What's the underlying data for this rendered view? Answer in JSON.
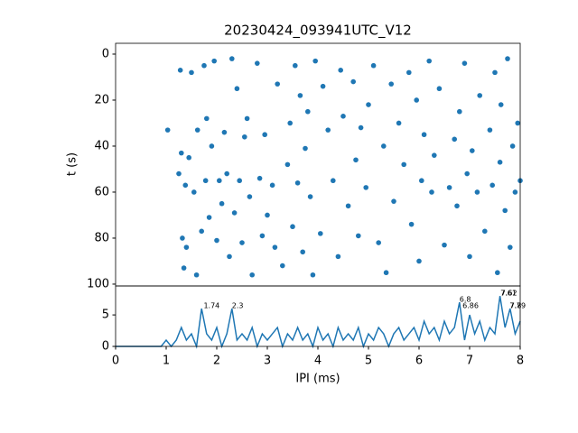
{
  "chart_data": [
    {
      "type": "scatter",
      "title": "20230424_093941UTC_V12",
      "ylabel": "t (s)",
      "color": "#1f77b4",
      "xlim": [
        0,
        8
      ],
      "ylim": [
        -4.7,
        100.8
      ],
      "y_inverted": true,
      "yticks": [
        0,
        20,
        40,
        60,
        80,
        100
      ],
      "x": [
        1.03,
        1.25,
        1.28,
        1.3,
        1.32,
        1.35,
        1.38,
        1.4,
        1.45,
        1.5,
        1.55,
        1.6,
        1.62,
        1.7,
        1.75,
        1.78,
        1.8,
        1.85,
        1.9,
        1.95,
        2.0,
        2.05,
        2.1,
        2.15,
        2.2,
        2.25,
        2.3,
        2.35,
        2.4,
        2.45,
        2.5,
        2.55,
        2.6,
        2.65,
        2.7,
        2.8,
        2.85,
        2.9,
        2.95,
        3.0,
        3.1,
        3.15,
        3.2,
        3.3,
        3.4,
        3.45,
        3.5,
        3.55,
        3.6,
        3.65,
        3.7,
        3.75,
        3.8,
        3.85,
        3.9,
        3.95,
        4.05,
        4.1,
        4.2,
        4.3,
        4.4,
        4.45,
        4.5,
        4.6,
        4.7,
        4.75,
        4.8,
        4.85,
        4.95,
        5.0,
        5.1,
        5.2,
        5.3,
        5.35,
        5.45,
        5.5,
        5.6,
        5.7,
        5.8,
        5.85,
        5.95,
        6.0,
        6.05,
        6.1,
        6.2,
        6.25,
        6.3,
        6.4,
        6.5,
        6.6,
        6.7,
        6.75,
        6.8,
        6.9,
        6.95,
        7.0,
        7.05,
        7.15,
        7.2,
        7.3,
        7.4,
        7.45,
        7.5,
        7.55,
        7.6,
        7.62,
        7.7,
        7.75,
        7.8,
        7.85,
        7.9,
        7.95,
        8.0
      ],
      "values": [
        33,
        52,
        7,
        43,
        80,
        93,
        57,
        84,
        45,
        8,
        60,
        96,
        33,
        77,
        5,
        55,
        28,
        71,
        40,
        3,
        81,
        55,
        65,
        34,
        52,
        88,
        2,
        69,
        15,
        55,
        82,
        36,
        28,
        62,
        96,
        4,
        54,
        79,
        35,
        70,
        57,
        84,
        13,
        92,
        48,
        30,
        75,
        5,
        56,
        18,
        86,
        41,
        25,
        62,
        96,
        3,
        78,
        14,
        33,
        55,
        88,
        7,
        27,
        66,
        12,
        46,
        79,
        32,
        58,
        22,
        5,
        82,
        40,
        95,
        13,
        64,
        30,
        48,
        8,
        74,
        20,
        90,
        55,
        35,
        3,
        60,
        44,
        15,
        83,
        58,
        37,
        66,
        25,
        4,
        52,
        88,
        42,
        60,
        18,
        77,
        33,
        57,
        8,
        95,
        47,
        22,
        68,
        2,
        84,
        40,
        60,
        30,
        55
      ]
    },
    {
      "type": "line",
      "xlabel": "IPI (ms)",
      "color": "#1f77b4",
      "xlim": [
        0,
        8
      ],
      "ylim": [
        0,
        9.6
      ],
      "xticks": [
        0,
        1,
        2,
        3,
        4,
        5,
        6,
        7,
        8
      ],
      "yticks": [
        0,
        5
      ],
      "x": [
        0,
        0.1,
        0.2,
        0.3,
        0.4,
        0.5,
        0.6,
        0.7,
        0.8,
        0.9,
        1.0,
        1.1,
        1.2,
        1.3,
        1.4,
        1.5,
        1.6,
        1.7,
        1.8,
        1.9,
        2.0,
        2.1,
        2.2,
        2.3,
        2.4,
        2.5,
        2.6,
        2.7,
        2.8,
        2.9,
        3.0,
        3.1,
        3.2,
        3.3,
        3.4,
        3.5,
        3.6,
        3.7,
        3.8,
        3.9,
        4.0,
        4.1,
        4.2,
        4.3,
        4.4,
        4.5,
        4.6,
        4.7,
        4.8,
        4.9,
        5.0,
        5.1,
        5.2,
        5.3,
        5.4,
        5.5,
        5.6,
        5.7,
        5.8,
        5.9,
        6.0,
        6.1,
        6.2,
        6.3,
        6.4,
        6.5,
        6.6,
        6.7,
        6.8,
        6.9,
        7.0,
        7.1,
        7.2,
        7.3,
        7.4,
        7.5,
        7.6,
        7.7,
        7.8,
        7.9,
        8.0
      ],
      "values": [
        0,
        0,
        0,
        0,
        0,
        0,
        0,
        0,
        0,
        0,
        1,
        0,
        1,
        3,
        1,
        2,
        0,
        6,
        2,
        1,
        3,
        0,
        2,
        6,
        1,
        2,
        1,
        3,
        0,
        2,
        1,
        2,
        3,
        0,
        2,
        1,
        3,
        1,
        2,
        0,
        3,
        1,
        2,
        0,
        3,
        1,
        2,
        1,
        3,
        0,
        2,
        1,
        3,
        2,
        0,
        2,
        3,
        1,
        2,
        3,
        1,
        4,
        2,
        3,
        1,
        4,
        2,
        3,
        7,
        1,
        5,
        2,
        4,
        1,
        3,
        2,
        8,
        3,
        6,
        2,
        4
      ],
      "annotations": [
        {
          "x": 1.74,
          "y": 6,
          "text": "1.74"
        },
        {
          "x": 2.3,
          "y": 6,
          "text": "2.3"
        },
        {
          "x": 6.8,
          "y": 7,
          "text": "6.8"
        },
        {
          "x": 6.86,
          "y": 6,
          "text": "6.86"
        },
        {
          "x": 7.62,
          "y": 8,
          "text": "7.62"
        },
        {
          "x": 7.61,
          "y": 8,
          "text": "7.61"
        },
        {
          "x": 7.79,
          "y": 6,
          "text": "7.79"
        },
        {
          "x": 7.8,
          "y": 6,
          "text": "7.8"
        }
      ]
    }
  ]
}
